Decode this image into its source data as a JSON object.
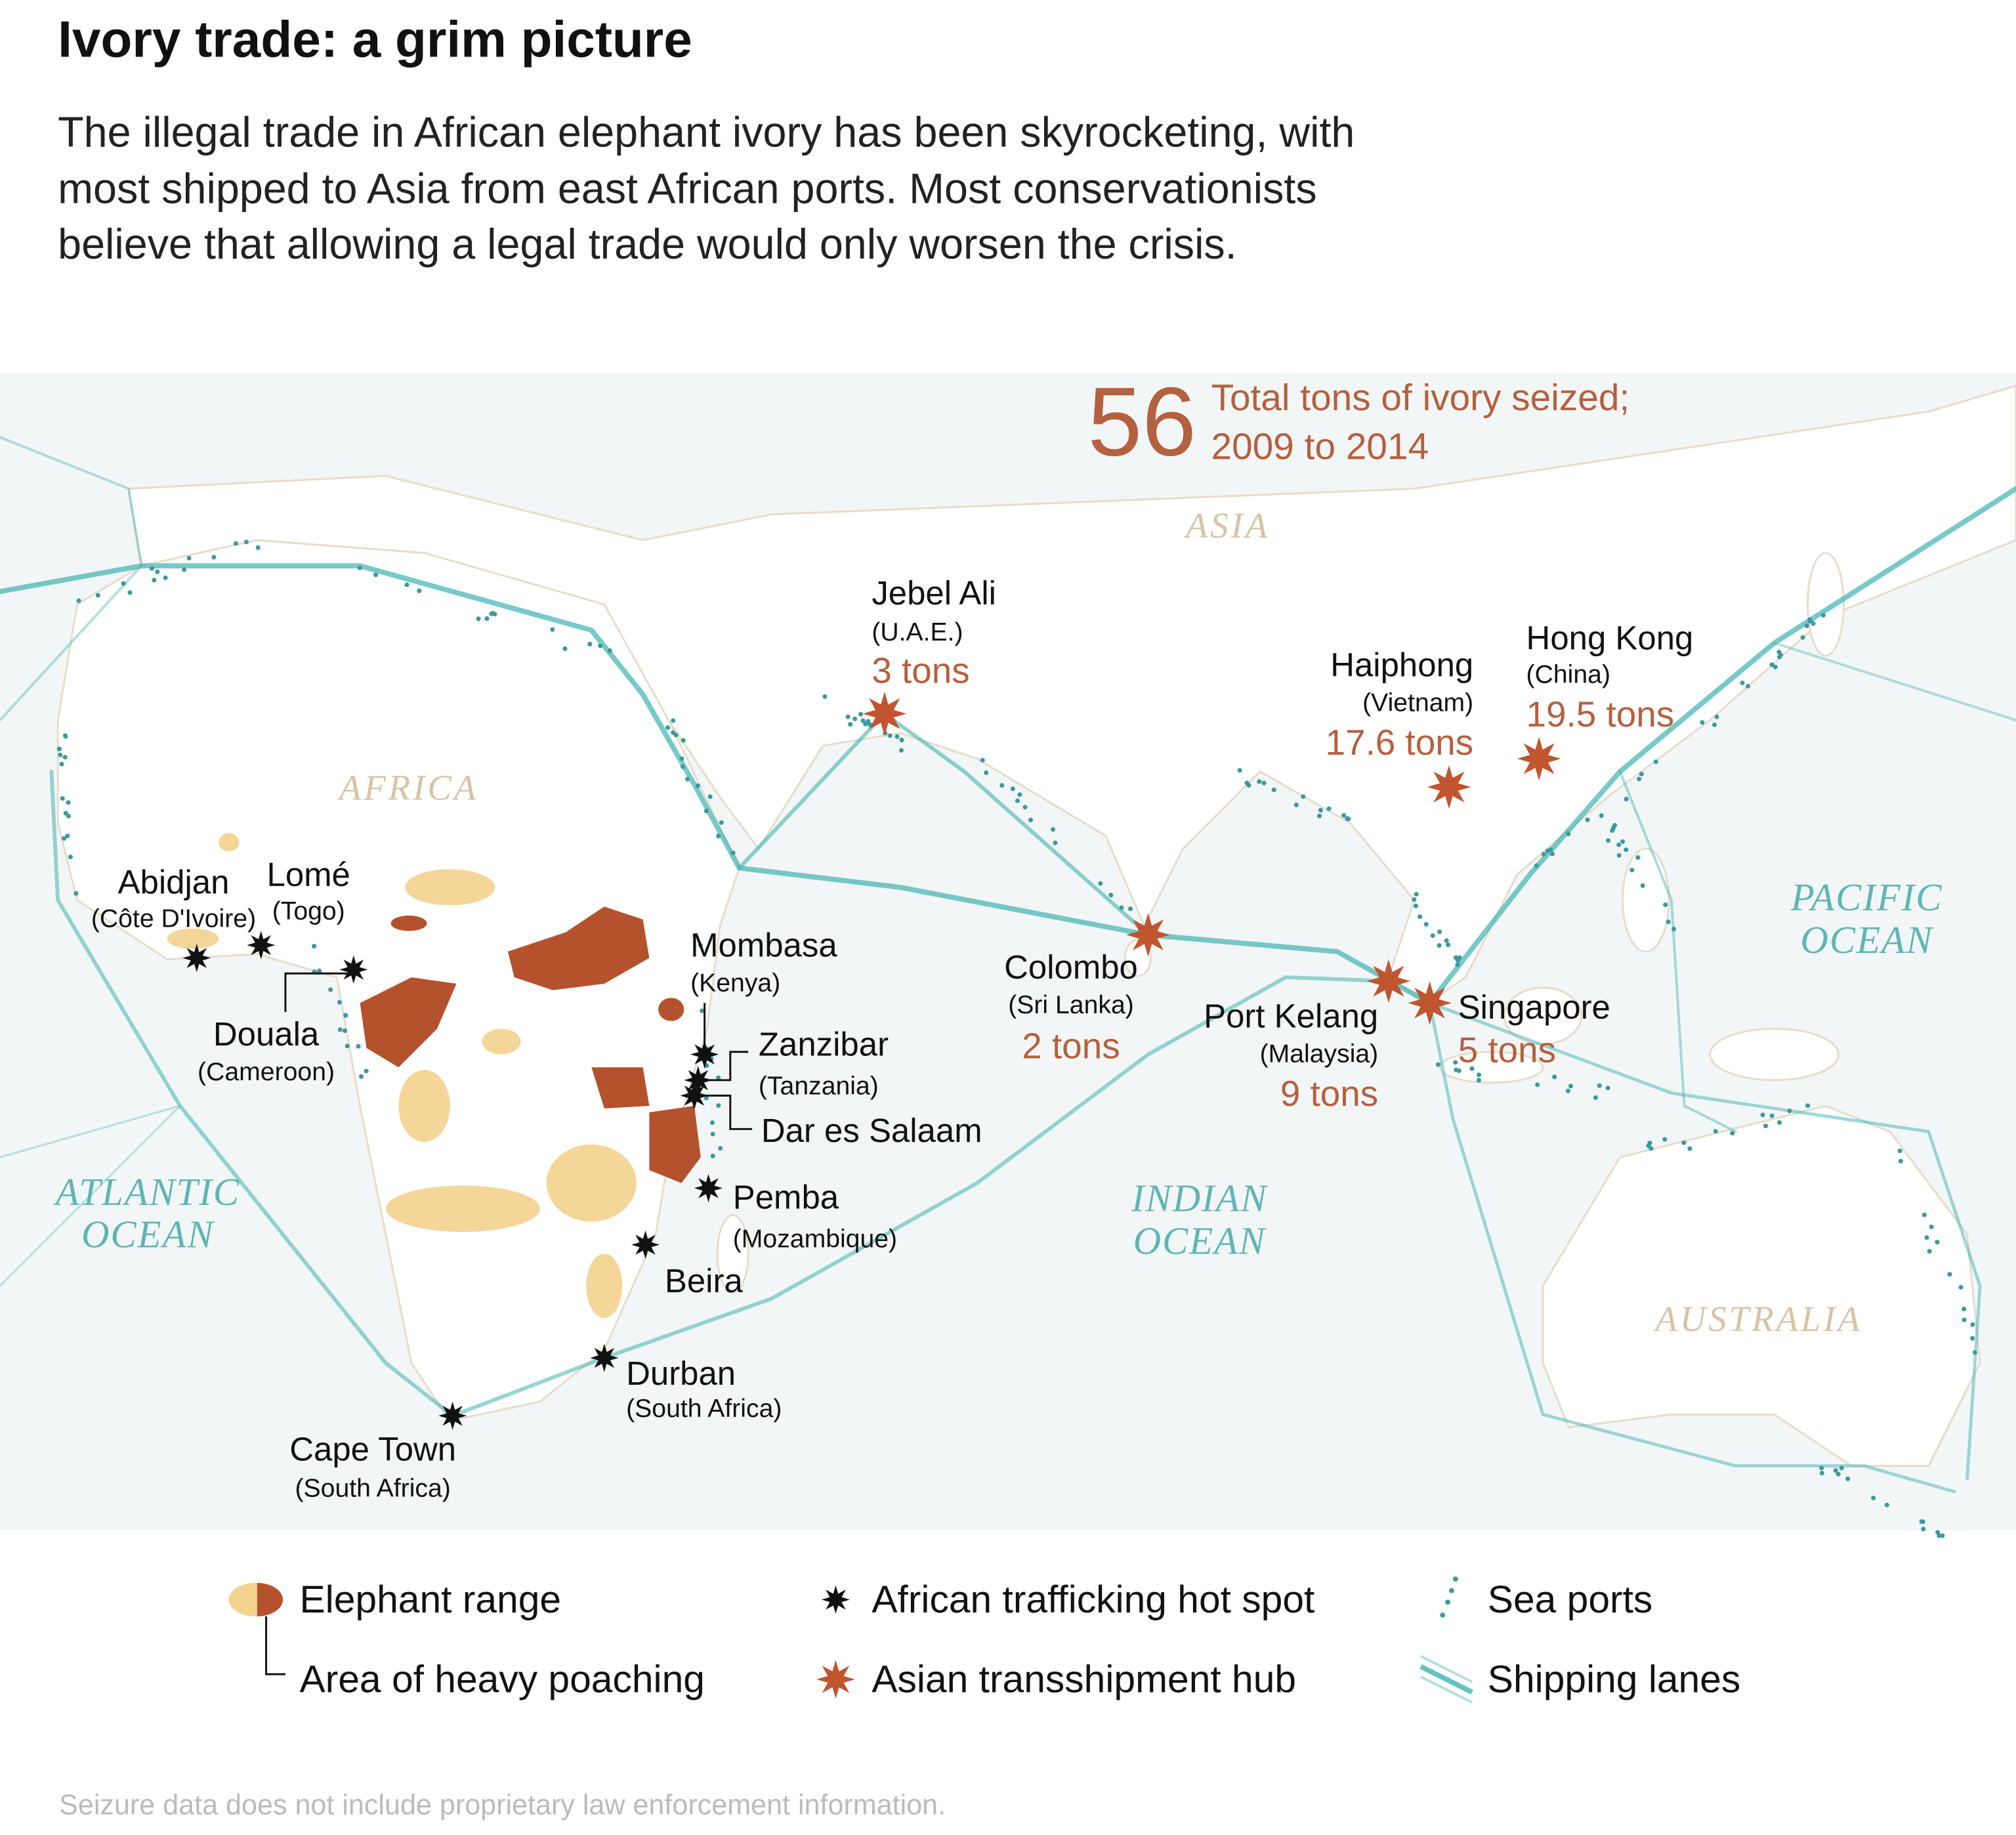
{
  "header": {
    "title": "Ivory trade: a grim picture",
    "subtitle": [
      "The illegal trade in African elephant ivory has been skyrocketing, with",
      "most shipped to Asia from east African ports. Most conservationists",
      "believe that allowing a legal trade would only worsen the crisis."
    ]
  },
  "total": {
    "value": "56",
    "label": [
      "Total tons of ivory seized;",
      "2009 to 2014"
    ]
  },
  "regions": [
    "ASIA",
    "AFRICA",
    "AUSTRALIA"
  ],
  "oceans": [
    [
      "ATLANTIC",
      "OCEAN"
    ],
    [
      "INDIAN",
      "OCEAN"
    ],
    [
      "PACIFIC",
      "OCEAN"
    ]
  ],
  "hubs": [
    {
      "name": "Jebel Ali",
      "country": "(U.A.E.)",
      "seized": "3 tons"
    },
    {
      "name": "Haiphong",
      "country": "(Vietnam)",
      "seized": "17.6 tons"
    },
    {
      "name": "Hong Kong",
      "country": "(China)",
      "seized": "19.5 tons"
    },
    {
      "name": "Colombo",
      "country": "(Sri Lanka)",
      "seized": "2 tons"
    },
    {
      "name": "Port Kelang",
      "country": "(Malaysia)",
      "seized": "9 tons"
    },
    {
      "name": "Singapore",
      "seized": "5 tons"
    }
  ],
  "hotspots": [
    {
      "name": "Abidjan",
      "country": "(Côte D'Ivoire)"
    },
    {
      "name": "Lomé",
      "country": "(Togo)"
    },
    {
      "name": "Douala",
      "country": "(Cameroon)"
    },
    {
      "name": "Mombasa",
      "country": "(Kenya)"
    },
    {
      "name": "Zanzibar",
      "country": "(Tanzania)"
    },
    {
      "name": "Dar es Salaam"
    },
    {
      "name": "Pemba",
      "country": "(Mozambique)"
    },
    {
      "name": "Beira"
    },
    {
      "name": "Durban",
      "country": "(South Africa)"
    },
    {
      "name": "Cape Town",
      "country": "(South Africa)"
    }
  ],
  "legend": [
    "Elephant range",
    "Area of heavy poaching",
    "African trafficking hot spot",
    "Asian transshipment hub",
    "Sea ports",
    "Shipping lanes"
  ],
  "footnote": "Seizure data does not include proprietary law enforcement information."
}
